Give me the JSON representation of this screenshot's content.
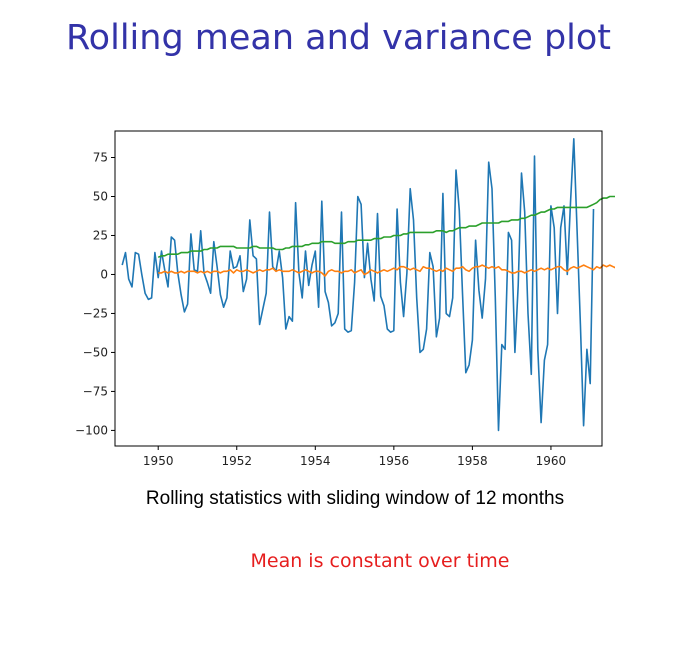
{
  "slide": {
    "title": "Rolling mean and variance plot",
    "caption": "Rolling statistics with sliding window of 12 months",
    "note": "Mean is constant over time"
  },
  "chart_data": {
    "type": "line",
    "xlim": [
      1948.9,
      1961.3
    ],
    "ylim": [
      -110,
      92
    ],
    "xticks": [
      1950,
      1952,
      1954,
      1956,
      1958,
      1960
    ],
    "yticks": [
      75,
      50,
      25,
      0,
      -25,
      -50,
      -75,
      -100
    ],
    "xtick_labels": [
      "1950",
      "1952",
      "1954",
      "1956",
      "1958",
      "1960"
    ],
    "ytick_labels": [
      "75",
      "50",
      "25",
      "0",
      "−25",
      "−50",
      "−75",
      "−100"
    ],
    "grid": false,
    "series": [
      {
        "color": "#1f77b4",
        "x_start": 1949.083,
        "x_step": 0.08333,
        "values": [
          6,
          14,
          -3,
          -8,
          14,
          13,
          0,
          -12,
          -16,
          -15,
          14,
          -2,
          15,
          3,
          -8,
          24,
          22,
          1,
          -13,
          -24,
          -19,
          26,
          3,
          2,
          28,
          1,
          -5,
          -12,
          21,
          5,
          -13,
          -21,
          -15,
          15,
          4,
          5,
          12,
          -11,
          -3,
          35,
          12,
          10,
          -32,
          -22,
          -12,
          40,
          5,
          2,
          15,
          -2,
          -35,
          -27,
          -30,
          46,
          1,
          -15,
          15,
          -7,
          6,
          15,
          -21,
          47,
          -11,
          -18,
          -33,
          -31,
          -25,
          40,
          -35,
          -37,
          -36,
          -5,
          50,
          45,
          -2,
          20,
          -3,
          -17,
          39,
          -14,
          -20,
          -35,
          -37,
          -36,
          42,
          -5,
          -27,
          1,
          55,
          35,
          -15,
          -50,
          -48,
          -35,
          14,
          5,
          -40,
          -28,
          52,
          -25,
          -27,
          -15,
          67,
          41,
          -12,
          -63,
          -58,
          -42,
          22,
          -10,
          -28,
          -3,
          72,
          55,
          -15,
          -100,
          -45,
          -48,
          27,
          22,
          -50,
          -7,
          65,
          40,
          -25,
          -64,
          76,
          -48,
          -95,
          -55,
          -45,
          44,
          30,
          -25,
          30,
          44,
          0,
          46,
          87,
          28,
          -32,
          -97,
          -48,
          -70,
          42
        ]
      },
      {
        "color": "#ff7f0e",
        "x_start": 1950.0,
        "x_step": 0.08333,
        "values": [
          1,
          1,
          2,
          1,
          2,
          1,
          1,
          2,
          1,
          2,
          2,
          2,
          1,
          2,
          1,
          2,
          1,
          2,
          2,
          1,
          2,
          2,
          3,
          1,
          3,
          2,
          2,
          3,
          2,
          1,
          2,
          3,
          2,
          3,
          3,
          4,
          2,
          3,
          2,
          2,
          2,
          3,
          2,
          1,
          2,
          3,
          2,
          1,
          2,
          2,
          1,
          -1,
          2,
          3,
          2,
          2,
          1,
          2,
          2,
          3,
          1,
          2,
          3,
          0,
          1,
          3,
          2,
          1,
          2,
          3,
          2,
          3,
          4,
          3,
          5,
          5,
          4,
          3,
          4,
          3,
          2,
          5,
          4,
          4,
          3,
          2,
          3,
          2,
          4,
          3,
          2,
          4,
          4,
          5,
          3,
          2,
          4,
          5,
          5,
          6,
          5,
          4,
          5,
          4,
          5,
          3,
          3,
          2,
          1,
          1,
          2,
          2,
          1,
          2,
          3,
          2,
          3,
          4,
          3,
          4,
          3,
          4,
          5,
          5,
          3,
          2,
          4,
          5,
          4,
          5,
          6,
          5,
          4,
          3,
          5,
          4,
          6,
          5,
          6,
          5,
          4,
          3,
          5,
          2
        ]
      },
      {
        "color": "#2ca02c",
        "x_start": 1950.0,
        "x_step": 0.08333,
        "values": [
          11,
          12,
          12,
          13,
          13,
          13,
          13,
          14,
          14,
          14,
          15,
          15,
          15,
          15,
          16,
          16,
          17,
          17,
          17,
          18,
          18,
          18,
          18,
          18,
          17,
          17,
          17,
          17,
          17,
          18,
          18,
          17,
          17,
          17,
          17,
          17,
          16,
          16,
          16,
          17,
          17,
          18,
          18,
          18,
          18,
          19,
          19,
          20,
          20,
          20,
          21,
          21,
          21,
          21,
          20,
          20,
          20,
          20,
          21,
          21,
          21,
          22,
          22,
          22,
          22,
          22,
          23,
          23,
          23,
          24,
          24,
          24,
          25,
          25,
          25,
          26,
          26,
          27,
          27,
          27,
          27,
          27,
          27,
          27,
          27,
          28,
          28,
          28,
          27,
          28,
          28,
          29,
          30,
          30,
          30,
          31,
          31,
          31,
          32,
          33,
          33,
          33,
          33,
          33,
          33,
          34,
          34,
          34,
          35,
          35,
          35,
          36,
          36,
          37,
          38,
          38,
          39,
          40,
          40,
          41,
          42,
          42,
          43,
          43,
          43,
          43,
          43,
          43,
          43,
          43,
          43,
          43,
          44,
          45,
          46,
          48,
          49,
          49,
          50,
          50,
          50,
          51,
          51,
          51,
          51,
          52,
          52,
          53,
          53,
          53,
          54,
          55,
          55,
          56,
          56,
          56,
          57,
          57
        ]
      }
    ]
  }
}
